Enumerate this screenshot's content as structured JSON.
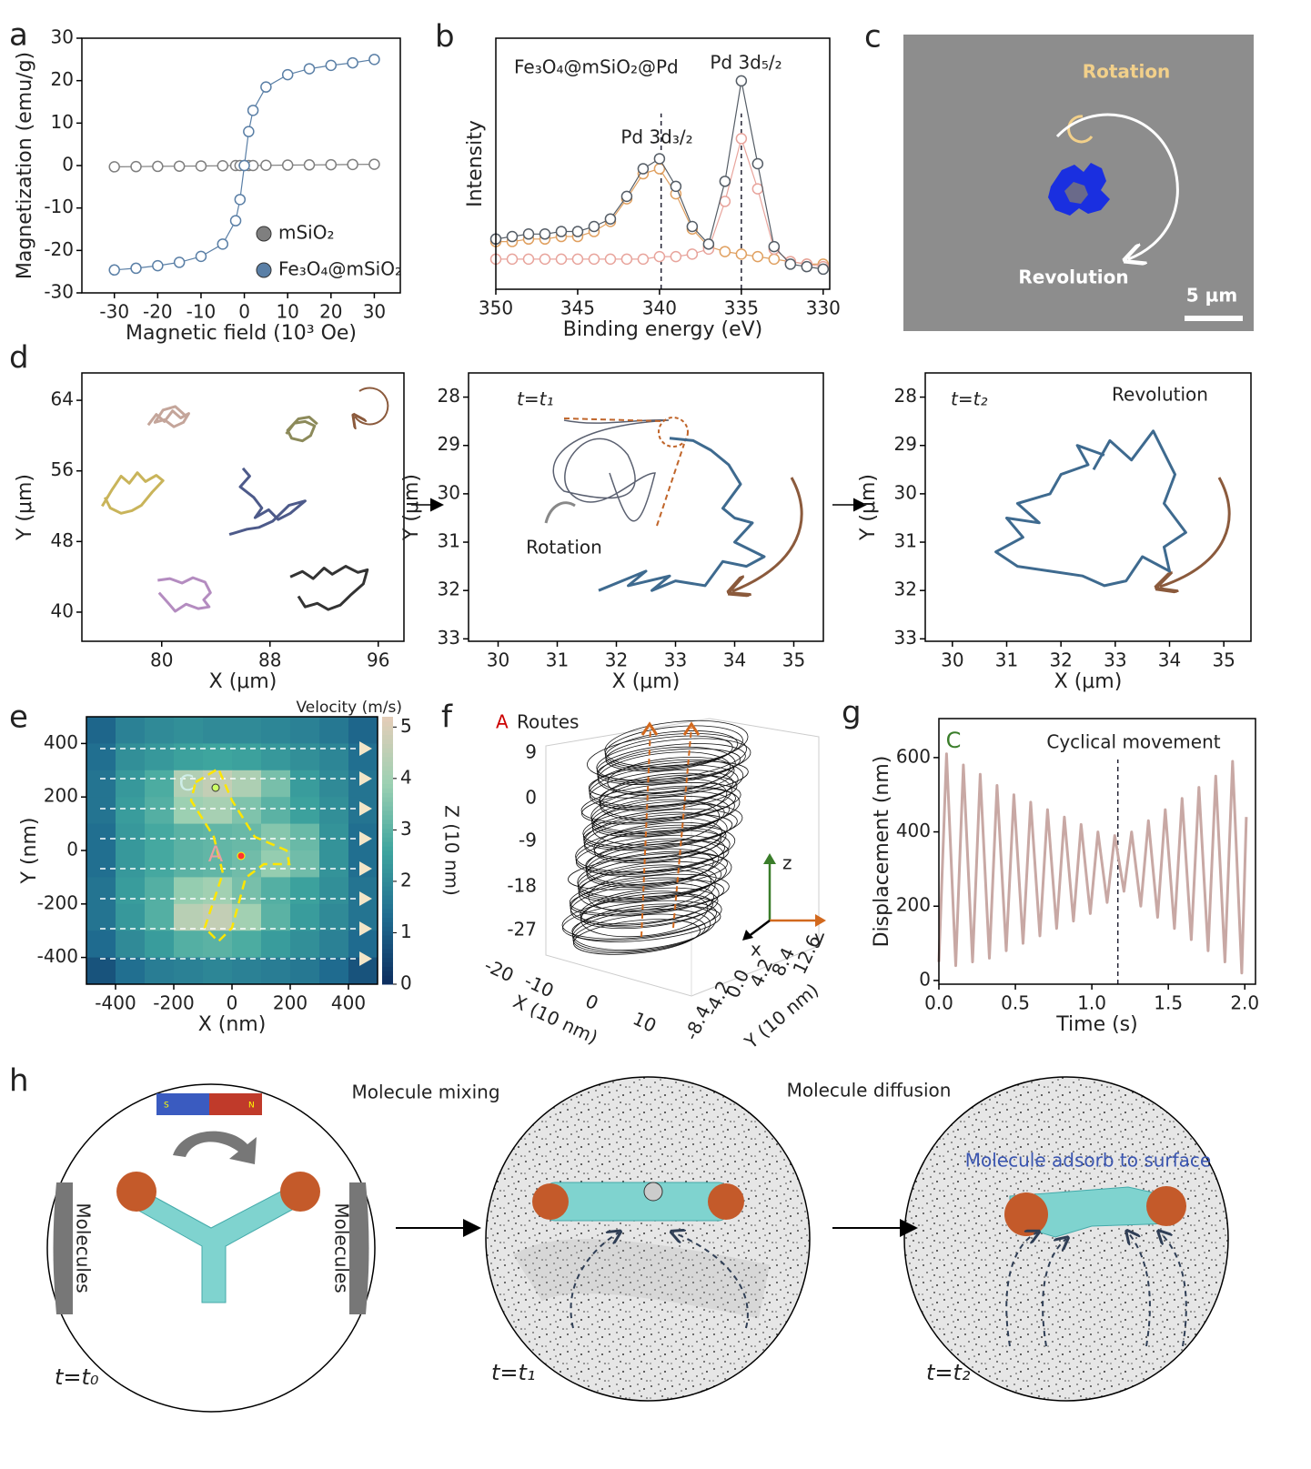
{
  "panel_labels": [
    "a",
    "b",
    "c",
    "d",
    "e",
    "f",
    "g",
    "h"
  ],
  "chart_data": [
    {
      "type": "line",
      "xlabel": "Magnetic field (10³ Oe)",
      "ylabel": "Magnetization (emu/g)",
      "xlim": [
        -37.5,
        36
      ],
      "ylim": [
        -30,
        30
      ],
      "xticks": [
        -30,
        -20,
        -10,
        0,
        10,
        20,
        30
      ],
      "yticks": [
        -30,
        -20,
        -10,
        0,
        10,
        20,
        30
      ],
      "legend": "lower right",
      "markers": true,
      "x": [
        -30,
        -25,
        -20,
        -15,
        -10,
        -5,
        -2,
        -1,
        0,
        1,
        2,
        5,
        10,
        15,
        20,
        25,
        30
      ],
      "series": [
        {
          "name": "mSiO₂",
          "color": "#7f7f7f",
          "values": [
            -0.3,
            -0.25,
            -0.2,
            -0.15,
            -0.1,
            -0.05,
            0,
            0,
            0,
            0,
            0,
            0.05,
            0.1,
            0.15,
            0.2,
            0.25,
            0.3
          ]
        },
        {
          "name": "Fe₃O₄@mSiO₂",
          "color": "#5a7fa6",
          "values": [
            -24.6,
            -24.2,
            -23.6,
            -22.8,
            -21.4,
            -18.5,
            -13,
            -8,
            0,
            8,
            13,
            18.5,
            21.4,
            22.8,
            23.6,
            24.2,
            25
          ]
        }
      ]
    },
    {
      "type": "line",
      "xlabel": "Binding energy (eV)",
      "ylabel": "Intensity",
      "xlim": [
        350,
        329.6
      ],
      "ylim": [
        0,
        100
      ],
      "xticks": [
        350,
        345,
        340,
        335,
        330
      ],
      "markers": true,
      "annotations": [
        "Fe₃O₄@mSiO₂@Pd",
        "Pd 3d₃/₂",
        "Pd 3d₅/₂"
      ],
      "vlines": [
        339.9,
        335
      ],
      "x": [
        350,
        349,
        348,
        347,
        346,
        345,
        344,
        343,
        342,
        341,
        340,
        339,
        338,
        337,
        336,
        335,
        334,
        333,
        332,
        331,
        330
      ],
      "series": [
        {
          "color": "#e0a060",
          "values": [
            19,
            19,
            20,
            20,
            21,
            21,
            23,
            27,
            36,
            46,
            48,
            38,
            24,
            17,
            15,
            14,
            13,
            12,
            11,
            10,
            10
          ]
        },
        {
          "color": "#e8a49c",
          "values": [
            12,
            12,
            12,
            12,
            12,
            12,
            12,
            12,
            12,
            12,
            13,
            13,
            14,
            16,
            35,
            60,
            40,
            16,
            11,
            10,
            9
          ]
        },
        {
          "color": "#555d66",
          "values": [
            20,
            21,
            22,
            22,
            23,
            23,
            25,
            28,
            37,
            48,
            52,
            41,
            25,
            18,
            43,
            83,
            50,
            17,
            10,
            9,
            8
          ]
        }
      ]
    },
    {
      "type": "line",
      "xlabel": "X (μm)",
      "ylabel": "Y (μm)",
      "xlim": [
        74.1,
        97.9
      ],
      "ylim": [
        36.7,
        67.1
      ],
      "xticks": [
        80,
        88,
        96
      ],
      "yticks": [
        40,
        48,
        56,
        64
      ],
      "series": [
        {
          "color": "#c4a59a",
          "x": [
            79.0,
            79.6,
            80.2,
            80.8,
            81.4,
            82.0,
            81.6,
            80.9,
            80.2,
            79.5,
            80.1,
            81.0,
            81.8
          ],
          "values": [
            61.2,
            62.4,
            61.6,
            62.8,
            62.0,
            62.5,
            61.5,
            61.0,
            61.8,
            61.5,
            62.9,
            63.3,
            62.2
          ]
        },
        {
          "color": "#8c8a5a",
          "x": [
            89.2,
            89.8,
            90.6,
            91.3,
            91.0,
            90.4,
            89.6,
            89.3,
            90.1,
            90.9,
            91.5
          ],
          "values": [
            60.2,
            61.4,
            61.6,
            61.1,
            60.0,
            59.4,
            59.7,
            60.6,
            61.9,
            62.1,
            61.3
          ]
        },
        {
          "color": "#c9b45a",
          "x": [
            75.6,
            76.3,
            77.0,
            77.6,
            78.2,
            78.8,
            79.6,
            80.1,
            79.3,
            78.5,
            77.8,
            77.0,
            76.2,
            75.8
          ],
          "values": [
            52.0,
            53.8,
            55.4,
            54.6,
            55.8,
            54.8,
            55.5,
            54.9,
            53.6,
            52.1,
            51.5,
            51.2,
            51.8,
            53.0
          ]
        },
        {
          "color": "#4d5a8a",
          "x": [
            86.0,
            86.5,
            85.8,
            86.8,
            87.4,
            86.9,
            87.9,
            88.6,
            89.5,
            90.6,
            89.4,
            88.2,
            87.2,
            86.3,
            85.0
          ],
          "values": [
            56.3,
            55.4,
            54.2,
            53.0,
            51.8,
            50.7,
            51.6,
            50.5,
            51.2,
            52.6,
            52.1,
            50.3,
            49.6,
            49.4,
            48.8
          ]
        },
        {
          "color": "#b48cc0",
          "x": [
            79.7,
            80.6,
            81.5,
            82.3,
            83.2,
            83.6,
            83.1,
            83.5,
            82.7,
            81.8,
            81.0,
            80.5,
            79.8
          ],
          "values": [
            43.6,
            43.8,
            43.3,
            43.9,
            43.4,
            42.2,
            41.4,
            40.6,
            40.4,
            40.9,
            40.1,
            41.0,
            42.2
          ]
        },
        {
          "color": "#333333",
          "x": [
            89.5,
            90.4,
            91.2,
            92.0,
            92.6,
            93.6,
            94.5,
            95.2,
            94.9,
            94.0,
            93.2,
            92.3,
            91.5,
            90.6,
            90.1
          ],
          "values": [
            44.0,
            44.6,
            43.8,
            45.0,
            44.3,
            45.2,
            44.5,
            44.8,
            43.2,
            42.0,
            40.8,
            40.3,
            41.0,
            40.6,
            41.8
          ]
        }
      ]
    },
    {
      "type": "line",
      "xlabel": "X (μm)",
      "ylabel": "Y (μm)",
      "xlim": [
        29.5,
        35.5
      ],
      "ylim": [
        33.05,
        27.5
      ],
      "xticks": [
        30,
        31,
        32,
        33,
        34,
        35
      ],
      "yticks": [
        28,
        29,
        30,
        31,
        32,
        33
      ],
      "annotations": [
        "t=t₁",
        "Rotation"
      ],
      "series": [
        {
          "color": "#3e6a8f",
          "x": [
            32.9,
            33.3,
            33.6,
            33.9,
            34.1,
            33.8,
            34.0,
            34.3,
            34.0,
            34.5,
            34.2,
            33.8,
            33.5,
            33.0,
            32.6,
            32.9,
            32.2,
            32.5,
            31.7
          ],
          "values": [
            28.85,
            28.9,
            29.1,
            29.4,
            29.8,
            30.3,
            30.5,
            30.6,
            31.0,
            31.3,
            31.5,
            31.4,
            31.9,
            31.8,
            32.0,
            31.7,
            31.9,
            31.6,
            32.0
          ]
        }
      ]
    },
    {
      "type": "line",
      "xlabel": "X (μm)",
      "ylabel": "Y (μm)",
      "xlim": [
        29.5,
        35.5
      ],
      "ylim": [
        33.05,
        27.5
      ],
      "xticks": [
        30,
        31,
        32,
        33,
        34,
        35
      ],
      "yticks": [
        28,
        29,
        30,
        31,
        32,
        33
      ],
      "annotations": [
        "t=t₂",
        "Revolution"
      ],
      "series": [
        {
          "color": "#3e6a8f",
          "x": [
            32.6,
            32.9,
            33.3,
            33.7,
            34.1,
            33.9,
            34.3,
            33.9,
            34.0,
            33.5,
            33.2,
            32.8,
            32.4,
            31.8,
            31.2,
            30.8,
            31.3,
            31.0,
            31.6,
            31.2,
            31.8,
            32.0,
            32.5,
            32.3,
            32.8
          ],
          "values": [
            29.5,
            28.9,
            29.3,
            28.7,
            29.6,
            30.2,
            30.8,
            31.1,
            31.6,
            31.3,
            31.8,
            31.9,
            31.7,
            31.6,
            31.5,
            31.2,
            30.9,
            30.5,
            30.6,
            30.2,
            30.0,
            29.6,
            29.4,
            29.0,
            29.2
          ]
        }
      ]
    },
    {
      "type": "heatmap",
      "xlabel": "X (nm)",
      "ylabel": "Y (nm)",
      "xlim": [
        -500,
        500
      ],
      "ylim": [
        -500,
        500
      ],
      "xticks": [
        -400,
        -200,
        0,
        200,
        400
      ],
      "yticks": [
        -400,
        -200,
        0,
        200,
        400
      ],
      "colorbar_label": "Velocity (m/s)",
      "clim": [
        0,
        5.2
      ],
      "cticks": [
        0,
        1,
        2,
        3,
        4,
        5
      ],
      "colors": [
        "#0c2d5e",
        "#1f6b8f",
        "#3ea59e",
        "#9cd0b2",
        "#e4cdb8"
      ],
      "annotations": [
        "C",
        "A"
      ],
      "values": [
        [
          1.2,
          1.8,
          2.0,
          2.1,
          2.0,
          2.0,
          1.9,
          1.8,
          1.6,
          1.2
        ],
        [
          1.4,
          2.1,
          2.3,
          2.5,
          2.6,
          2.5,
          2.3,
          2.1,
          1.9,
          1.4
        ],
        [
          1.5,
          2.3,
          2.8,
          4.3,
          4.6,
          4.2,
          3.4,
          2.4,
          2.0,
          1.5
        ],
        [
          1.5,
          2.4,
          2.9,
          3.9,
          4.1,
          3.5,
          3.0,
          2.5,
          2.1,
          1.5
        ],
        [
          1.4,
          2.3,
          2.7,
          3.0,
          3.1,
          3.2,
          3.6,
          3.2,
          2.2,
          1.4
        ],
        [
          1.4,
          2.3,
          2.7,
          3.0,
          3.1,
          3.3,
          3.8,
          3.3,
          2.2,
          1.4
        ],
        [
          1.5,
          2.4,
          2.9,
          3.8,
          4.0,
          3.4,
          2.9,
          2.5,
          2.1,
          1.5
        ],
        [
          1.5,
          2.3,
          2.9,
          4.4,
          4.6,
          4.0,
          3.0,
          2.4,
          2.0,
          1.5
        ],
        [
          1.3,
          2.0,
          2.4,
          2.9,
          3.0,
          2.8,
          2.4,
          2.1,
          1.8,
          1.3
        ],
        [
          0.8,
          1.4,
          1.7,
          1.8,
          1.9,
          1.8,
          1.7,
          1.6,
          1.3,
          0.8
        ]
      ]
    },
    {
      "type": "line",
      "title": "Cyclical movement",
      "xlabel": "Time (s)",
      "ylabel": "Displacement (nm)",
      "xlim": [
        0,
        2.07
      ],
      "ylim": [
        -10,
        705
      ],
      "xticks": [
        {
          "value": 0,
          "label": "0.0"
        },
        0.5,
        {
          "value": 1,
          "label": "1.0"
        },
        1.5,
        {
          "value": 2,
          "label": "2.0"
        }
      ],
      "yticks": [
        0,
        200,
        400,
        600
      ],
      "annotations": [
        "C"
      ],
      "vlines": [
        1.17
      ],
      "x": [
        0,
        0.05,
        0.11,
        0.16,
        0.22,
        0.27,
        0.33,
        0.38,
        0.44,
        0.49,
        0.55,
        0.6,
        0.66,
        0.71,
        0.77,
        0.82,
        0.88,
        0.93,
        0.99,
        1.04,
        1.1,
        1.15,
        1.21,
        1.26,
        1.32,
        1.37,
        1.43,
        1.48,
        1.54,
        1.59,
        1.65,
        1.7,
        1.76,
        1.81,
        1.87,
        1.92,
        1.98,
        2.01
      ],
      "series": [
        {
          "color": "#c8a8a4",
          "values": [
            50,
            610,
            40,
            580,
            50,
            555,
            60,
            525,
            80,
            500,
            100,
            480,
            120,
            460,
            140,
            440,
            160,
            420,
            180,
            400,
            210,
            390,
            240,
            400,
            200,
            430,
            170,
            460,
            140,
            490,
            110,
            520,
            80,
            550,
            50,
            590,
            20,
            440
          ]
        }
      ]
    }
  ],
  "panel_c": {
    "rotation": "Rotation",
    "revolution": "Revolution",
    "scale_bar": "5 µm"
  },
  "panel_f": {
    "legend_marker": "A",
    "legend_label": "Routes",
    "z_label": "Z (10 nm)",
    "z_ticks": [
      "9",
      "0",
      "-9",
      "-18",
      "-27"
    ],
    "x_label": "X (10 nm)",
    "x_ticks": [
      "-20",
      "-10",
      "0",
      "10"
    ],
    "y_label": "Y (10 nm)",
    "y_ticks": [
      "-8.4",
      "-4.2",
      "0.0",
      "4.2",
      "8.4",
      "12.6"
    ],
    "axis_z": "z",
    "axis_y": "y",
    "axis_x": "x"
  },
  "panel_h": {
    "title_mixing": "Molecule mixing",
    "title_diffusion": "Molecule diffusion",
    "molecules_left": "Molecules",
    "molecules_right": "Molecules",
    "magnet_s": "S",
    "magnet_n": "N",
    "adsorb": "Molecule adsorb to surface",
    "time_labels": [
      "t=t₀",
      "t=t₁",
      "t=t₂"
    ]
  }
}
